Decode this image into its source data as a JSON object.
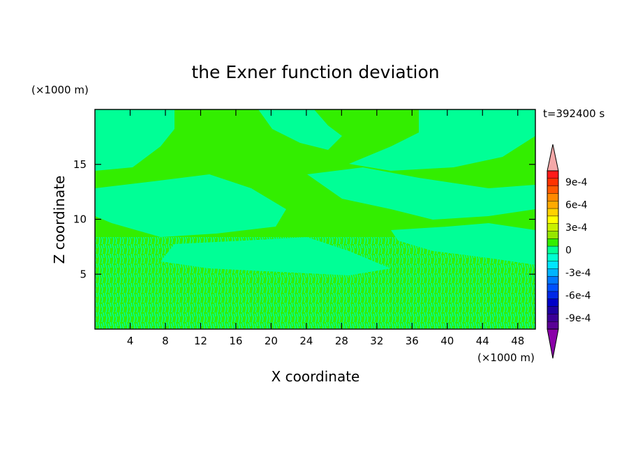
{
  "chart_data": {
    "type": "heatmap",
    "title": "the Exner function deviation",
    "xlabel": "X coordinate",
    "ylabel": "Z coordinate",
    "x_unit": "(×1000 m)",
    "y_unit": "(×1000 m)",
    "time_label": "t=392400 s",
    "x_range": [
      0,
      50
    ],
    "y_range": [
      0,
      20
    ],
    "x_ticks": [
      4,
      8,
      12,
      16,
      20,
      24,
      28,
      32,
      36,
      40,
      44,
      48
    ],
    "y_ticks": [
      5,
      10,
      15
    ],
    "colorbar": {
      "labels": [
        "9e-4",
        "6e-4",
        "3e-4",
        "0",
        "-3e-4",
        "-6e-4",
        "-9e-4"
      ],
      "label_values": [
        0.0009,
        0.0006,
        0.0003,
        0,
        -0.0003,
        -0.0006,
        -0.0009
      ],
      "top_arrow_color": "#f4a8a8",
      "bottom_arrow_color": "#8a00a8",
      "bands": [
        "#ff1a1a",
        "#ff3300",
        "#ff5a00",
        "#ff8a00",
        "#ffaa00",
        "#ffd200",
        "#ffff00",
        "#c8f000",
        "#96e600",
        "#33ee00",
        "#00ff96",
        "#00ffd2",
        "#00e6ff",
        "#00b4ff",
        "#0078ff",
        "#0050ff",
        "#0028e6",
        "#0000c8",
        "#1e00a0",
        "#3c0096",
        "#5a0096"
      ]
    },
    "field_colors": {
      "positive_small": "#33ee00",
      "negative_small": "#00ff96"
    }
  }
}
